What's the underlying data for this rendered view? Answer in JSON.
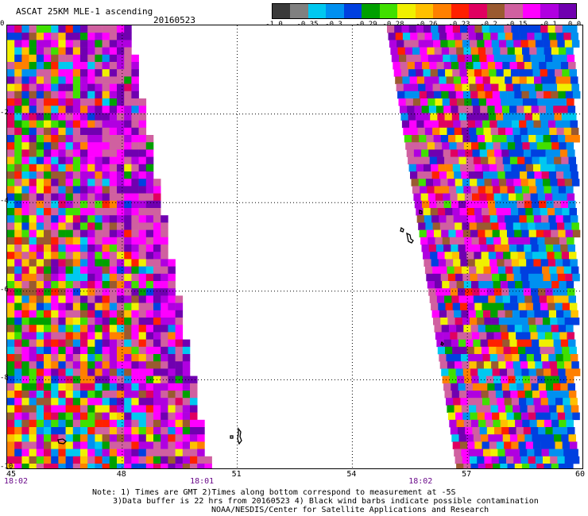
{
  "header": {
    "title": "ASCAT 25KM MLE-1 ascending",
    "date": "20160523"
  },
  "colorbar": {
    "colors": [
      "#3a3a3a",
      "#808080",
      "#00c8f0",
      "#0090f0",
      "#0040e0",
      "#00a000",
      "#40e000",
      "#f0f000",
      "#ffc000",
      "#ff8000",
      "#ff2000",
      "#e00060",
      "#9a5a30",
      "#d060a0",
      "#ff00ff",
      "#b000e0",
      "#7000b0"
    ],
    "labels": [
      "-1.0",
      "-0.35",
      "-0.3",
      "-0.29",
      "-0.28",
      "-0.26",
      "-0.23",
      "-0.2",
      "-0.15",
      "-0.1",
      "0.0"
    ]
  },
  "axes": {
    "y_ticks": [
      "0",
      "-2",
      "-4",
      "-6",
      "-8",
      "-10"
    ],
    "x_ticks": [
      "45",
      "48",
      "51",
      "54",
      "57",
      "60"
    ],
    "time_labels": [
      {
        "lon": 45,
        "text": "18:02"
      },
      {
        "lon": 50.1,
        "text": "18:01"
      },
      {
        "lon": 55.8,
        "text": "18:02"
      }
    ],
    "lon_range": [
      45,
      60
    ],
    "lat_range": [
      -10,
      0
    ]
  },
  "notes": {
    "line1": "Note: 1) Times are GMT 2)Times along bottom correspond to measurement at -5S",
    "line2": "3)Data buffer is 22 hrs from 20160523 4) Black wind barbs indicate possible contamination",
    "line3": "NOAA/NESDIS/Center for Satellite Applications and Research"
  }
}
